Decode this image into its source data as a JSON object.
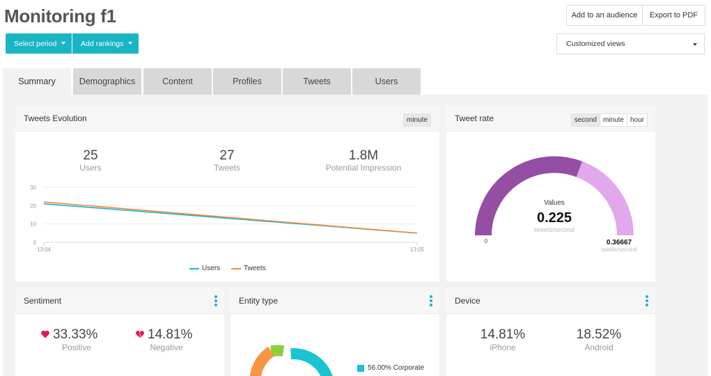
{
  "page": {
    "title": "Monitoring f1"
  },
  "actions": {
    "add_audience": "Add to an audience",
    "export_pdf": "Export to PDF"
  },
  "controls": {
    "select_period": "Select period",
    "add_rankings": "Add rankings",
    "views_selected": "Customized views"
  },
  "tabs": [
    {
      "label": "Summary",
      "active": true
    },
    {
      "label": "Demographics",
      "active": false
    },
    {
      "label": "Content",
      "active": false
    },
    {
      "label": "Profiles",
      "active": false
    },
    {
      "label": "Tweets",
      "active": false
    },
    {
      "label": "Users",
      "active": false
    }
  ],
  "evolution": {
    "title": "Tweets Evolution",
    "granularity": "minute",
    "stats": [
      {
        "value": "25",
        "label": "Users"
      },
      {
        "value": "27",
        "label": "Tweets"
      },
      {
        "value": "1.8M",
        "label": "Potential Impression"
      }
    ],
    "legend": {
      "users": "Users",
      "tweets": "Tweets"
    }
  },
  "tweet_rate": {
    "title": "Tweet rate",
    "granularity_options": [
      "second",
      "minute",
      "hour"
    ],
    "granularity_selected": "second",
    "gauge_title": "Values",
    "value": "0.225",
    "unit": "tweets/second",
    "min_label": "0",
    "max_value": "0.36667",
    "max_unit": "tweets/second"
  },
  "sentiment": {
    "title": "Sentiment",
    "positive": {
      "value": "33.33%",
      "label": "Positive"
    },
    "negative": {
      "value": "14.81%",
      "label": "Negative"
    }
  },
  "entity_type": {
    "title": "Entity type",
    "legend_corporate": "56.00% Corporate"
  },
  "device": {
    "title": "Device",
    "iphone": {
      "value": "14.81%",
      "label": "iPhone"
    },
    "android": {
      "value": "18.52%",
      "label": "Android"
    }
  },
  "colors": {
    "accent": "#1ab5c5",
    "users_line": "#17b6c4",
    "tweets_line": "#f4883c",
    "gauge_value": "#944fa4",
    "gauge_rest": "#e1a8ec",
    "heart": "#e8134e",
    "donut_cyan": "#19c4d3",
    "donut_orange": "#f79543",
    "donut_green": "#8dcf3c"
  },
  "chart_data": {
    "type": "line",
    "x": [
      "13:04",
      "13:05"
    ],
    "series": [
      {
        "name": "Users",
        "values": [
          21,
          5
        ]
      },
      {
        "name": "Tweets",
        "values": [
          22,
          5
        ]
      }
    ],
    "yticks": [
      0,
      10,
      20,
      30
    ],
    "ylim": [
      0,
      30
    ],
    "grid": true,
    "legend": "bottom-center"
  }
}
